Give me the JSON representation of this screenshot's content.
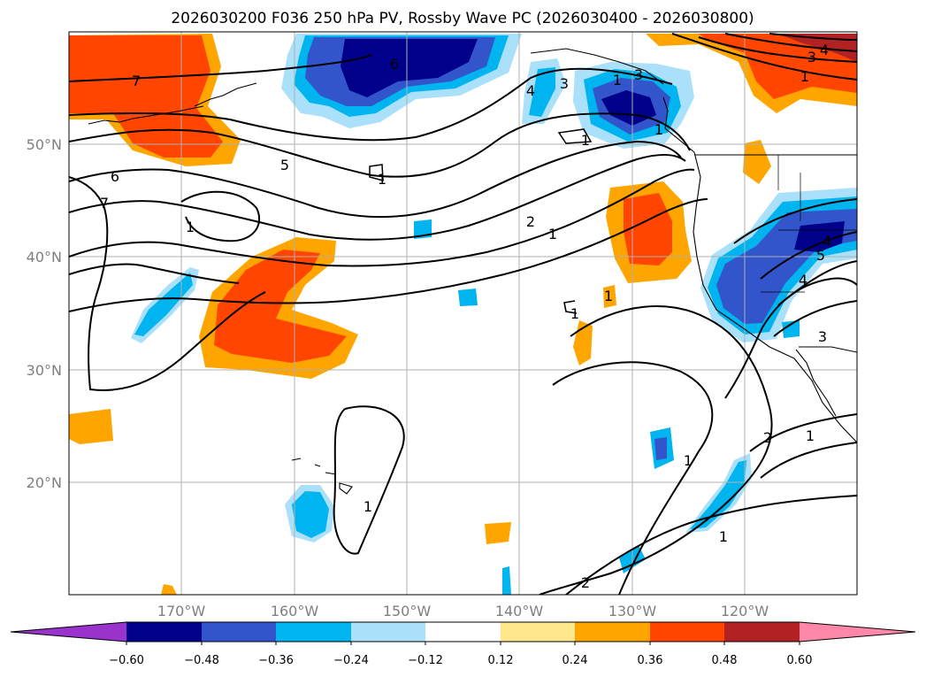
{
  "title": "2026030200 F036 250 hPa PV, Rossby Wave PC (2026030400 - 2026030800)",
  "axes": {
    "lat_labels": [
      "50°N",
      "40°N",
      "30°N",
      "20°N"
    ],
    "lon_labels": [
      "170°W",
      "160°W",
      "150°W",
      "140°W",
      "130°W",
      "120°W"
    ]
  },
  "colorbar": {
    "colors": [
      "#9933cc",
      "#00008b",
      "#3355cc",
      "#00b4f0",
      "#aae0fa",
      "#ffffff",
      "#ffe88c",
      "#ffa500",
      "#ff4500",
      "#b22222",
      "#ff88aa"
    ],
    "tick_labels": [
      "−0.60",
      "−0.48",
      "−0.36",
      "−0.24",
      "−0.12",
      "0.12",
      "0.24",
      "0.36",
      "0.48",
      "0.60"
    ]
  },
  "contour_labels": [
    "7",
    "6",
    "7",
    "5",
    "4",
    "3",
    "1",
    "2",
    "1",
    "1",
    "1",
    "1",
    "4",
    "3",
    "2",
    "1",
    "1",
    "1",
    "1",
    "2",
    "1",
    "6",
    "3",
    "4",
    "1",
    "1",
    "5",
    "4",
    "3",
    "1"
  ]
}
